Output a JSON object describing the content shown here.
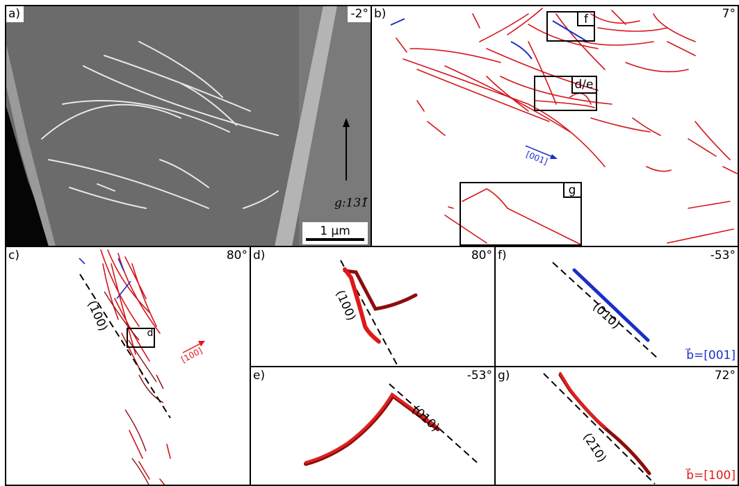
{
  "panels": {
    "a": {
      "label": "a)",
      "angle": "-2°",
      "g_vector": "g:131̄",
      "scale_bar": "1 µm"
    },
    "b": {
      "label": "b)",
      "angle": "7°",
      "boxes": [
        "f",
        "d/e",
        "g"
      ],
      "direction": "[001]"
    },
    "c": {
      "label": "c)",
      "angle": "80°",
      "plane": "(100)",
      "box": "d",
      "direction": "[100]"
    },
    "d": {
      "label": "d)",
      "angle": "80°",
      "plane": "(100)"
    },
    "e": {
      "label": "e)",
      "angle": "-53°",
      "plane": "(010)"
    },
    "f": {
      "label": "f)",
      "angle": "-53°",
      "plane": "(010)",
      "burgers": "b⃗=[001]"
    },
    "g": {
      "label": "g)",
      "angle": "72°",
      "plane": "(21̄0)",
      "burgers": "b⃗=[100]"
    }
  }
}
